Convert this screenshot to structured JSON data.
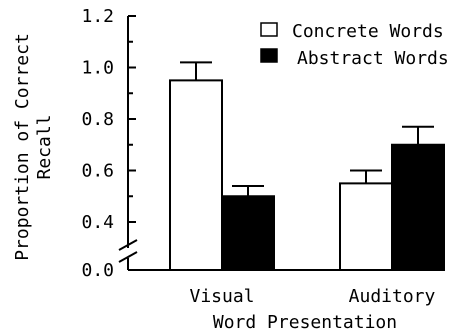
{
  "chart_data": {
    "type": "bar",
    "categories": [
      "Visual",
      "Auditory"
    ],
    "series": [
      {
        "name": "Concrete Words",
        "values": [
          0.95,
          0.55
        ],
        "errors": [
          0.07,
          0.05
        ],
        "fill": "#ffffff"
      },
      {
        "name": "Abstract Words",
        "values": [
          0.5,
          0.7
        ],
        "errors": [
          0.04,
          0.07
        ],
        "fill": "#000000"
      }
    ],
    "xlabel": "Word Presentation",
    "ylabel_line1": "Proportion of Correct",
    "ylabel_line2": "Recall",
    "yticks": [
      "1.2",
      "1.0",
      "0.8",
      "0.6",
      "0.4",
      "0.0"
    ],
    "ylim": [
      0.3,
      1.2
    ],
    "axis_break": true,
    "legend_position": "top-right",
    "grid": false
  }
}
